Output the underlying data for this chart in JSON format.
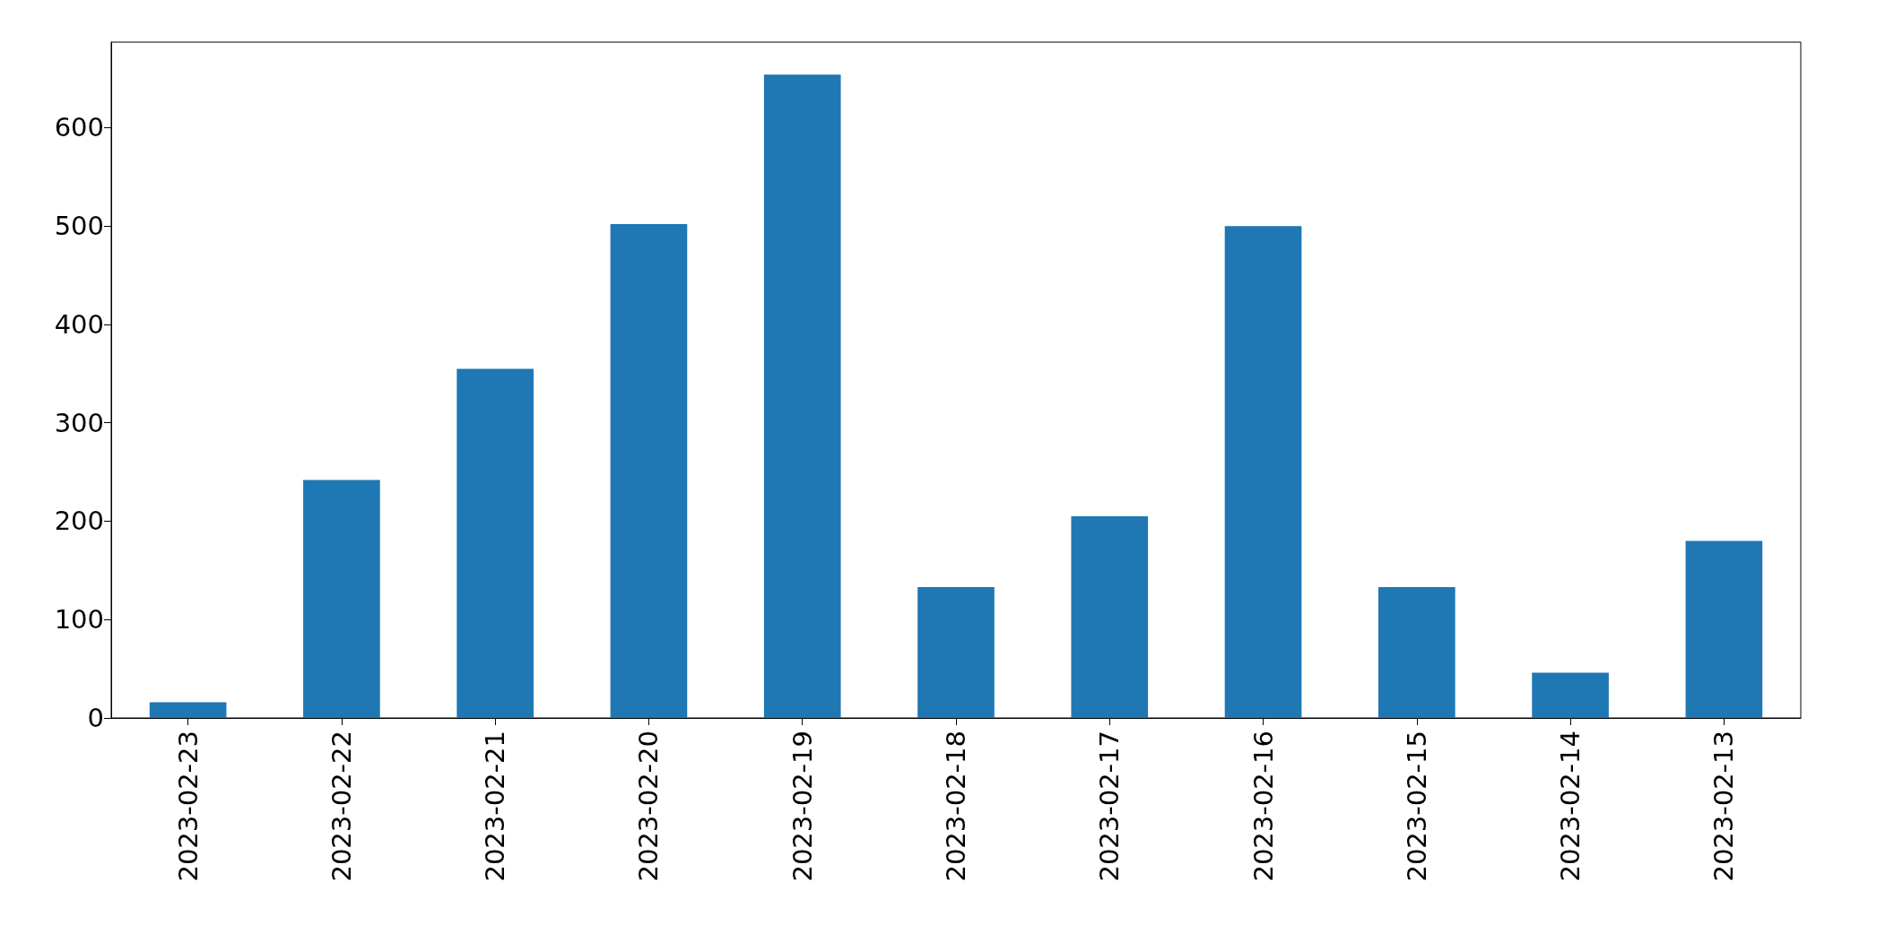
{
  "chart_data": {
    "type": "bar",
    "categories": [
      "2023-02-23",
      "2023-02-22",
      "2023-02-21",
      "2023-02-20",
      "2023-02-19",
      "2023-02-18",
      "2023-02-17",
      "2023-02-16",
      "2023-02-15",
      "2023-02-14",
      "2023-02-13"
    ],
    "values": [
      16,
      242,
      355,
      502,
      654,
      133,
      205,
      500,
      133,
      46,
      180
    ],
    "color": "#1f77b4",
    "ylim": [
      0,
      687
    ],
    "yticks": [
      0,
      100,
      200,
      300,
      400,
      500,
      600
    ],
    "grid": false
  }
}
